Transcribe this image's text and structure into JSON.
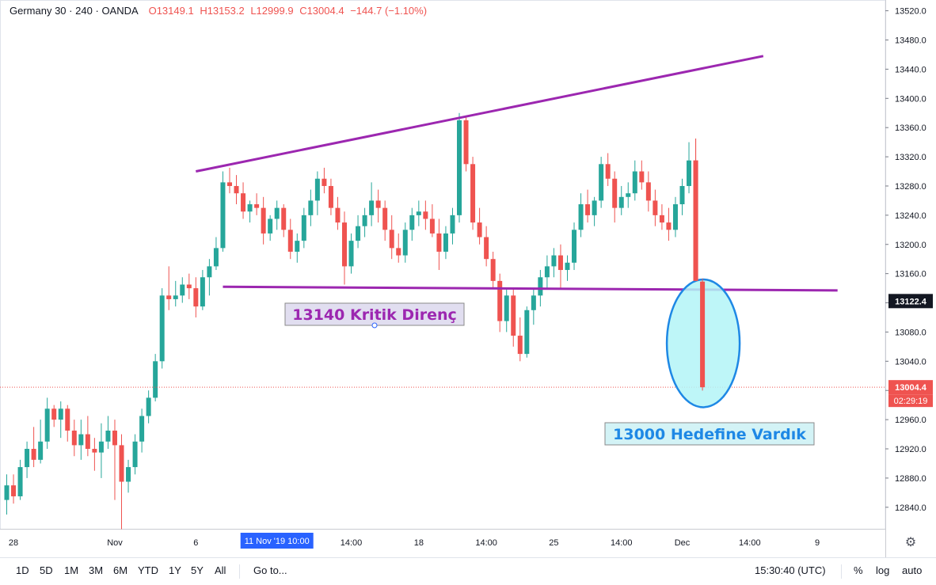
{
  "header": {
    "symbol": "Germany 30",
    "interval": "240",
    "source": "OANDA",
    "sep": "·",
    "open": "O13149.1",
    "high": "H13153.2",
    "low": "L12999.9",
    "close": "C13004.4",
    "change": "−144.7 (−1.10%)"
  },
  "chart_data": {
    "type": "candlestick",
    "y_axis": {
      "min": 12800,
      "max": 13540,
      "ticks": [
        12840,
        12880,
        12920,
        12960,
        13000,
        13040,
        13080,
        13120,
        13160,
        13200,
        13240,
        13280,
        13320,
        13360,
        13400,
        13440,
        13480,
        13520
      ],
      "tick_labels": [
        "12840.0",
        "12880.0",
        "12920.0",
        "12960.0",
        "13000.0",
        "13040.0",
        "13080.0",
        "13120.0",
        "13160.0",
        "13200.0",
        "13240.0",
        "13280.0",
        "13320.0",
        "13360.0",
        "13400.0",
        "13440.0",
        "13480.0",
        "13520.0"
      ]
    },
    "x_axis": {
      "labels": [
        {
          "label": "28",
          "bar": 1
        },
        {
          "label": "Nov",
          "bar": 16
        },
        {
          "label": "6",
          "bar": 28
        },
        {
          "label": "11 Nov '19  10:00",
          "bar": 40,
          "highlight": true
        },
        {
          "label": "14:00",
          "bar": 51
        },
        {
          "label": "18",
          "bar": 61
        },
        {
          "label": "14:00",
          "bar": 71
        },
        {
          "label": "25",
          "bar": 81
        },
        {
          "label": "14:00",
          "bar": 91
        },
        {
          "label": "Dec",
          "bar": 100
        },
        {
          "label": "14:00",
          "bar": 110
        },
        {
          "label": "9",
          "bar": 120
        }
      ]
    },
    "candles": [
      [
        12850,
        12885,
        12830,
        12870
      ],
      [
        12870,
        12885,
        12845,
        12855
      ],
      [
        12855,
        12905,
        12850,
        12895
      ],
      [
        12895,
        12930,
        12880,
        12920
      ],
      [
        12920,
        12950,
        12895,
        12905
      ],
      [
        12905,
        12960,
        12900,
        12930
      ],
      [
        12930,
        12990,
        12920,
        12975
      ],
      [
        12975,
        12980,
        12950,
        12960
      ],
      [
        12960,
        12985,
        12935,
        12975
      ],
      [
        12975,
        12980,
        12930,
        12945
      ],
      [
        12945,
        12960,
        12910,
        12925
      ],
      [
        12925,
        12960,
        12905,
        12940
      ],
      [
        12940,
        12965,
        12910,
        12920
      ],
      [
        12920,
        12935,
        12890,
        12915
      ],
      [
        12915,
        12955,
        12880,
        12930
      ],
      [
        12930,
        12965,
        12920,
        12945
      ],
      [
        12945,
        12960,
        12850,
        12925
      ],
      [
        12925,
        12940,
        12810,
        12875
      ],
      [
        12875,
        12905,
        12860,
        12895
      ],
      [
        12895,
        12940,
        12885,
        12930
      ],
      [
        12930,
        12975,
        12915,
        12965
      ],
      [
        12965,
        13000,
        12955,
        12990
      ],
      [
        12990,
        13050,
        12985,
        13040
      ],
      [
        13040,
        13140,
        13030,
        13130
      ],
      [
        13130,
        13170,
        13110,
        13125
      ],
      [
        13125,
        13150,
        13115,
        13130
      ],
      [
        13130,
        13155,
        13120,
        13145
      ],
      [
        13145,
        13160,
        13125,
        13140
      ],
      [
        13140,
        13155,
        13100,
        13115
      ],
      [
        13115,
        13165,
        13110,
        13155
      ],
      [
        13155,
        13180,
        13130,
        13170
      ],
      [
        13170,
        13210,
        13165,
        13195
      ],
      [
        13195,
        13300,
        13190,
        13285
      ],
      [
        13285,
        13305,
        13270,
        13280
      ],
      [
        13280,
        13295,
        13255,
        13270
      ],
      [
        13270,
        13285,
        13235,
        13245
      ],
      [
        13245,
        13260,
        13230,
        13255
      ],
      [
        13255,
        13270,
        13240,
        13250
      ],
      [
        13250,
        13265,
        13200,
        13215
      ],
      [
        13215,
        13240,
        13205,
        13235
      ],
      [
        13235,
        13260,
        13220,
        13250
      ],
      [
        13250,
        13255,
        13210,
        13220
      ],
      [
        13220,
        13235,
        13180,
        13190
      ],
      [
        13190,
        13215,
        13175,
        13205
      ],
      [
        13205,
        13250,
        13195,
        13240
      ],
      [
        13240,
        13275,
        13225,
        13260
      ],
      [
        13260,
        13300,
        13240,
        13290
      ],
      [
        13290,
        13305,
        13270,
        13280
      ],
      [
        13280,
        13290,
        13240,
        13250
      ],
      [
        13250,
        13265,
        13220,
        13230
      ],
      [
        13230,
        13245,
        13145,
        13170
      ],
      [
        13170,
        13215,
        13160,
        13205
      ],
      [
        13205,
        13240,
        13195,
        13225
      ],
      [
        13225,
        13250,
        13210,
        13240
      ],
      [
        13240,
        13285,
        13225,
        13260
      ],
      [
        13260,
        13275,
        13230,
        13250
      ],
      [
        13250,
        13260,
        13205,
        13220
      ],
      [
        13220,
        13240,
        13180,
        13195
      ],
      [
        13195,
        13215,
        13175,
        13185
      ],
      [
        13185,
        13230,
        13175,
        13220
      ],
      [
        13220,
        13250,
        13205,
        13240
      ],
      [
        13240,
        13260,
        13225,
        13245
      ],
      [
        13245,
        13260,
        13220,
        13235
      ],
      [
        13235,
        13255,
        13210,
        13215
      ],
      [
        13215,
        13235,
        13165,
        13190
      ],
      [
        13190,
        13225,
        13180,
        13215
      ],
      [
        13215,
        13250,
        13200,
        13240
      ],
      [
        13240,
        13380,
        13230,
        13370
      ],
      [
        13370,
        13375,
        13300,
        13310
      ],
      [
        13310,
        13320,
        13220,
        13230
      ],
      [
        13230,
        13250,
        13200,
        13210
      ],
      [
        13210,
        13225,
        13170,
        13180
      ],
      [
        13180,
        13190,
        13140,
        13150
      ],
      [
        13150,
        13160,
        13080,
        13095
      ],
      [
        13095,
        13140,
        13080,
        13130
      ],
      [
        13130,
        13140,
        13060,
        13075
      ],
      [
        13075,
        13100,
        13040,
        13050
      ],
      [
        13050,
        13115,
        13045,
        13110
      ],
      [
        13110,
        13140,
        13090,
        13130
      ],
      [
        13130,
        13165,
        13115,
        13155
      ],
      [
        13155,
        13185,
        13140,
        13170
      ],
      [
        13170,
        13195,
        13155,
        13185
      ],
      [
        13185,
        13200,
        13140,
        13165
      ],
      [
        13165,
        13185,
        13150,
        13175
      ],
      [
        13175,
        13230,
        13165,
        13220
      ],
      [
        13220,
        13270,
        13210,
        13255
      ],
      [
        13255,
        13275,
        13230,
        13240
      ],
      [
        13240,
        13265,
        13225,
        13260
      ],
      [
        13260,
        13320,
        13250,
        13310
      ],
      [
        13310,
        13325,
        13280,
        13290
      ],
      [
        13290,
        13300,
        13230,
        13250
      ],
      [
        13250,
        13280,
        13240,
        13265
      ],
      [
        13265,
        13285,
        13250,
        13270
      ],
      [
        13270,
        13315,
        13260,
        13300
      ],
      [
        13300,
        13315,
        13275,
        13285
      ],
      [
        13285,
        13300,
        13245,
        13260
      ],
      [
        13260,
        13275,
        13225,
        13240
      ],
      [
        13240,
        13255,
        13220,
        13230
      ],
      [
        13230,
        13250,
        13205,
        13220
      ],
      [
        13220,
        13265,
        13210,
        13255
      ],
      [
        13255,
        13290,
        13240,
        13280
      ],
      [
        13280,
        13340,
        13270,
        13315
      ],
      [
        13315,
        13345,
        13150,
        13150
      ],
      [
        13149.1,
        13153.2,
        12999.9,
        13004.4
      ]
    ],
    "trendlines": [
      {
        "name": "upper",
        "from": [
          28,
          13300
        ],
        "to": [
          112,
          13458
        ],
        "color": "#9c27b0"
      },
      {
        "name": "support",
        "from": [
          32,
          13142
        ],
        "to": [
          123,
          13137
        ],
        "color": "#9c27b0"
      }
    ],
    "annotations": {
      "kritik": "13140 Kritik Direnç",
      "hedef": "13000 Hedefine Vardık"
    },
    "price_labels": {
      "last": "13004.4",
      "countdown": "02:29:19",
      "crosshair": "13122.4"
    }
  },
  "bottom": {
    "ranges": [
      "1D",
      "5D",
      "1M",
      "3M",
      "6M",
      "YTD",
      "1Y",
      "5Y",
      "All"
    ],
    "goto": "Go to...",
    "time": "15:30:40 (UTC)",
    "percent": "%",
    "log": "log",
    "auto": "auto"
  },
  "colors": {
    "up": "#26a69a",
    "down": "#ef5350",
    "purple": "#9c27b0",
    "ellipse": "#b3f5f7",
    "ellipse_stroke": "#1e88e5"
  }
}
